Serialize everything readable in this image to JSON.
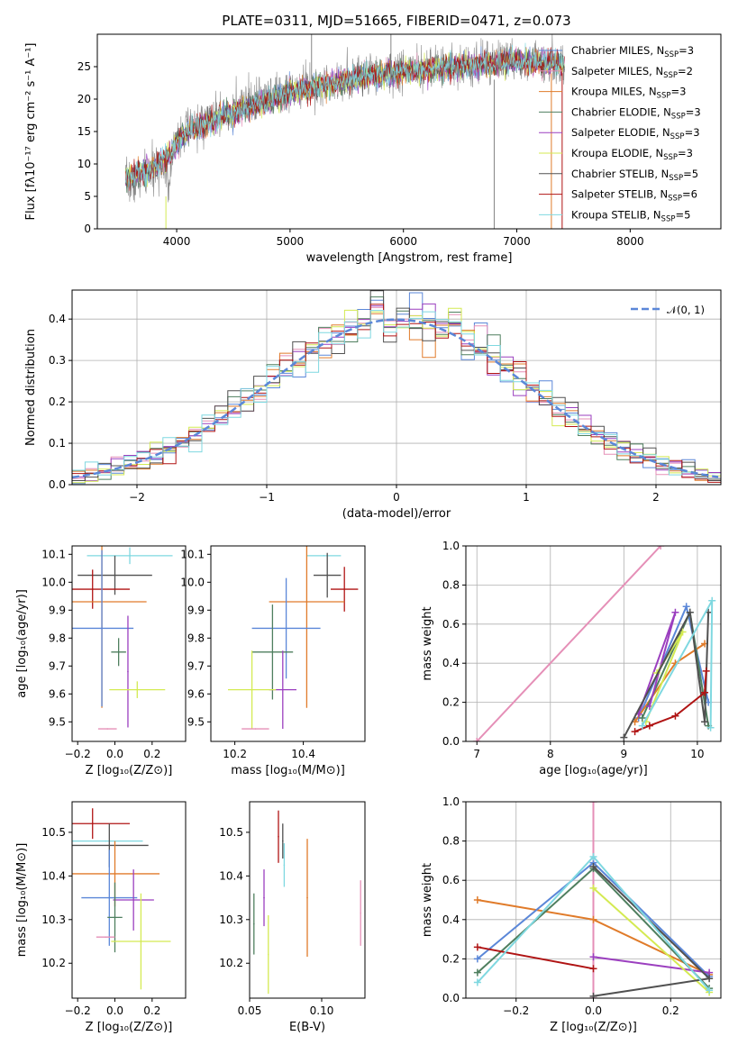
{
  "title": "PLATE=0311, MJD=51665, FIBERID=0471, z=0.073",
  "colors": {
    "chabrier_miles": "#5b87d8",
    "salpeter_miles": "#e58fb7",
    "kroupa_miles": "#e07b2a",
    "chabrier_elodie": "#4f7f5f",
    "salpeter_elodie": "#9b3fbf",
    "kroupa_elodie": "#d4ea52",
    "chabrier_stelib": "#505050",
    "salpeter_stelib": "#b01414",
    "kroupa_stelib": "#7fd8e0"
  },
  "chart_data": [
    {
      "id": "spectrum",
      "type": "line",
      "title": "PLATE=0311, MJD=51665, FIBERID=0471, z=0.073",
      "xlabel": "wavelength [Angstrom, rest frame]",
      "ylabel": "Flux [fλ10⁻¹⁷ erg cm⁻² s⁻¹ A⁻¹]",
      "xlim": [
        3300,
        8800
      ],
      "ylim": [
        0,
        30
      ],
      "xticks": [
        4000,
        5000,
        6000,
        7000,
        8000
      ],
      "yticks": [
        0,
        5,
        10,
        15,
        20,
        25
      ],
      "grid": false,
      "legend_position": "top-right",
      "legend": [
        {
          "key": "chabrier_miles",
          "label": "Chabrier MILES, N",
          "sub": "SSP",
          "tail": "=3"
        },
        {
          "key": "salpeter_miles",
          "label": "Salpeter MILES, N",
          "sub": "SSP",
          "tail": "=2"
        },
        {
          "key": "kroupa_miles",
          "label": "Kroupa MILES, N",
          "sub": "SSP",
          "tail": "=3"
        },
        {
          "key": "chabrier_elodie",
          "label": "Chabrier ELODIE, N",
          "sub": "SSP",
          "tail": "=3"
        },
        {
          "key": "salpeter_elodie",
          "label": "Salpeter ELODIE, N",
          "sub": "SSP",
          "tail": "=3"
        },
        {
          "key": "kroupa_elodie",
          "label": "Kroupa ELODIE, N",
          "sub": "SSP",
          "tail": "=3"
        },
        {
          "key": "chabrier_stelib",
          "label": "Chabrier STELIB, N",
          "sub": "SSP",
          "tail": "=5"
        },
        {
          "key": "salpeter_stelib",
          "label": "Salpeter STELIB, N",
          "sub": "SSP",
          "tail": "=6"
        },
        {
          "key": "kroupa_stelib",
          "label": "Kroupa STELIB, N",
          "sub": "SSP",
          "tail": "=5"
        }
      ],
      "continuum": [
        [
          3550,
          7.5
        ],
        [
          3650,
          7.0
        ],
        [
          3750,
          8.5
        ],
        [
          3850,
          9.5
        ],
        [
          3950,
          11.0
        ],
        [
          4050,
          15.0
        ],
        [
          4150,
          16.0
        ],
        [
          4250,
          16.5
        ],
        [
          4400,
          17.5
        ],
        [
          4500,
          18.5
        ],
        [
          4700,
          19.5
        ],
        [
          4900,
          20.5
        ],
        [
          5100,
          22.0
        ],
        [
          5300,
          22.5
        ],
        [
          5500,
          23.0
        ],
        [
          5700,
          24.0
        ],
        [
          5900,
          24.2
        ],
        [
          6100,
          24.5
        ],
        [
          6300,
          24.8
        ],
        [
          6500,
          25.0
        ],
        [
          6700,
          25.5
        ],
        [
          6900,
          26.0
        ],
        [
          7100,
          26.0
        ],
        [
          7300,
          25.5
        ],
        [
          7420,
          25.3
        ]
      ],
      "model_continuum": [
        [
          3550,
          8.0
        ],
        [
          3750,
          9.0
        ],
        [
          3950,
          11.5
        ],
        [
          4050,
          14.5
        ],
        [
          4300,
          16.5
        ],
        [
          4600,
          18.5
        ],
        [
          5000,
          21.0
        ],
        [
          5500,
          23.0
        ],
        [
          6000,
          24.2
        ],
        [
          6500,
          25.0
        ],
        [
          7000,
          25.8
        ],
        [
          7400,
          25.5
        ]
      ]
    },
    {
      "id": "residuals",
      "type": "histogram",
      "xlabel": "(data-model)/error",
      "ylabel": "Normed distribution",
      "xlim": [
        -2.5,
        2.5
      ],
      "ylim": [
        0,
        0.47
      ],
      "xticks": [
        -2,
        -1,
        0,
        1,
        2
      ],
      "yticks": [
        0.0,
        0.1,
        0.2,
        0.3,
        0.4
      ],
      "grid": true,
      "legend_position": "top-right",
      "legend_label": "𝒩(0, 1)",
      "gaussian_mean": 0,
      "gaussian_sigma": 1,
      "bin_width": 0.1
    },
    {
      "id": "age_vs_Z",
      "type": "errorbar",
      "xlabel": "Z [log₁₀(Z/Z⊙)]",
      "ylabel": "age  [log₁₀(age/yr)]",
      "xlim": [
        -0.23,
        0.38
      ],
      "ylim": [
        9.43,
        10.13
      ],
      "xticks": [
        -0.2,
        0.0,
        0.2
      ],
      "yticks": [
        9.5,
        9.6,
        9.7,
        9.8,
        9.9,
        10.0,
        10.1
      ],
      "grid": false,
      "points": [
        {
          "key": "kroupa_stelib",
          "x": 0.08,
          "y": 10.095,
          "xerr": 0.23,
          "yerr": 0.03
        },
        {
          "key": "chabrier_stelib",
          "x": 0.0,
          "y": 10.025,
          "xerr": 0.2,
          "yerr": 0.07
        },
        {
          "key": "salpeter_stelib",
          "x": -0.12,
          "y": 9.975,
          "xerr": 0.2,
          "yerr": 0.07
        },
        {
          "key": "kroupa_miles",
          "x": -0.07,
          "y": 9.93,
          "xerr": 0.24,
          "yerr": 0.38
        },
        {
          "key": "chabrier_miles",
          "x": -0.07,
          "y": 9.835,
          "xerr": 0.17,
          "yerr": 0.28
        },
        {
          "key": "chabrier_elodie",
          "x": 0.02,
          "y": 9.75,
          "xerr": 0.04,
          "yerr": 0.05
        },
        {
          "key": "salpeter_elodie",
          "x": 0.07,
          "y": 9.68,
          "xerr": 0.0,
          "yerr": 0.2
        },
        {
          "key": "kroupa_elodie",
          "x": 0.12,
          "y": 9.615,
          "xerr": 0.15,
          "yerr": 0.03
        },
        {
          "key": "salpeter_miles",
          "x": -0.04,
          "y": 9.475,
          "xerr": 0.05,
          "yerr": 0.0
        }
      ]
    },
    {
      "id": "age_vs_mass",
      "type": "errorbar",
      "xlabel": "mass [log₁₀(M/M⊙)]",
      "ylabel": "",
      "xlim": [
        10.13,
        10.58
      ],
      "ylim": [
        9.43,
        10.13
      ],
      "xticks": [
        10.2,
        10.4
      ],
      "yticks": [
        9.5,
        9.6,
        9.7,
        9.8,
        9.9,
        10.0,
        10.1
      ],
      "grid": false,
      "points": [
        {
          "key": "kroupa_stelib",
          "x": 10.46,
          "y": 10.095,
          "xerr": 0.05,
          "yerr": 0.0
        },
        {
          "key": "chabrier_stelib",
          "x": 10.47,
          "y": 10.025,
          "xerr": 0.04,
          "yerr": 0.08
        },
        {
          "key": "salpeter_stelib",
          "x": 10.52,
          "y": 9.975,
          "xerr": 0.04,
          "yerr": 0.08
        },
        {
          "key": "kroupa_miles",
          "x": 10.41,
          "y": 9.93,
          "xerr": 0.11,
          "yerr": 0.38
        },
        {
          "key": "chabrier_miles",
          "x": 10.35,
          "y": 9.835,
          "xerr": 0.1,
          "yerr": 0.18
        },
        {
          "key": "chabrier_elodie",
          "x": 10.31,
          "y": 9.75,
          "xerr": 0.06,
          "yerr": 0.17
        },
        {
          "key": "salpeter_elodie",
          "x": 10.34,
          "y": 9.615,
          "xerr": 0.04,
          "yerr": 0.14
        },
        {
          "key": "kroupa_elodie",
          "x": 10.25,
          "y": 9.615,
          "xerr": 0.07,
          "yerr": 0.14
        },
        {
          "key": "salpeter_miles",
          "x": 10.26,
          "y": 9.475,
          "xerr": 0.04,
          "yerr": 0.0
        }
      ]
    },
    {
      "id": "massweight_vs_age",
      "type": "line",
      "xlabel": "age  [log₁₀(age/yr)]",
      "ylabel": "mass weight",
      "xlim": [
        6.85,
        10.32
      ],
      "ylim": [
        0,
        1.0
      ],
      "xticks": [
        7,
        8,
        9,
        10
      ],
      "yticks": [
        0.0,
        0.2,
        0.4,
        0.6,
        0.8,
        1.0
      ],
      "grid": true,
      "series": [
        {
          "key": "salpeter_miles",
          "x": [
            7.0,
            9.5
          ],
          "y": [
            0.0,
            1.0
          ]
        },
        {
          "key": "chabrier_miles",
          "x": [
            9.2,
            9.85,
            10.15
          ],
          "y": [
            0.12,
            0.69,
            0.2
          ]
        },
        {
          "key": "kroupa_miles",
          "x": [
            9.15,
            9.7,
            10.1
          ],
          "y": [
            0.1,
            0.4,
            0.5
          ]
        },
        {
          "key": "chabrier_elodie",
          "x": [
            9.25,
            9.9,
            10.15
          ],
          "y": [
            0.12,
            0.66,
            0.08
          ]
        },
        {
          "key": "salpeter_elodie",
          "x": [
            9.2,
            9.7,
            9.35
          ],
          "y": [
            0.14,
            0.66,
            0.18
          ]
        },
        {
          "key": "kroupa_elodie",
          "x": [
            9.3,
            9.8,
            9.45
          ],
          "y": [
            0.1,
            0.56,
            0.35
          ]
        },
        {
          "key": "chabrier_stelib",
          "x": [
            9.0,
            9.9,
            10.1,
            10.15
          ],
          "y": [
            0.02,
            0.66,
            0.1,
            0.66
          ]
        },
        {
          "key": "salpeter_stelib",
          "x": [
            9.15,
            9.35,
            9.7,
            10.1,
            10.12
          ],
          "y": [
            0.05,
            0.08,
            0.13,
            0.25,
            0.36
          ]
        },
        {
          "key": "kroupa_stelib",
          "x": [
            9.25,
            10.2,
            10.18
          ],
          "y": [
            0.08,
            0.72,
            0.07
          ]
        }
      ]
    },
    {
      "id": "mass_vs_Z",
      "type": "errorbar",
      "xlabel": "Z [log₁₀(Z/Z⊙)]",
      "ylabel": "mass [log₁₀(M/M⊙)]",
      "xlim": [
        -0.23,
        0.38
      ],
      "ylim": [
        10.12,
        10.57
      ],
      "xticks": [
        -0.2,
        0.0,
        0.2
      ],
      "yticks": [
        10.2,
        10.3,
        10.4,
        10.5
      ],
      "grid": false,
      "points": [
        {
          "key": "salpeter_stelib",
          "x": -0.12,
          "y": 10.52,
          "xerr": 0.2,
          "yerr": 0.035
        },
        {
          "key": "kroupa_stelib",
          "x": -0.05,
          "y": 10.48,
          "xerr": 0.2,
          "yerr": 0.0
        },
        {
          "key": "chabrier_stelib",
          "x": -0.03,
          "y": 10.47,
          "xerr": 0.21,
          "yerr": 0.05
        },
        {
          "key": "kroupa_miles",
          "x": 0.0,
          "y": 10.405,
          "xerr": 0.24,
          "yerr": 0.075
        },
        {
          "key": "chabrier_miles",
          "x": -0.03,
          "y": 10.35,
          "xerr": 0.15,
          "yerr": 0.11
        },
        {
          "key": "salpeter_elodie",
          "x": 0.1,
          "y": 10.345,
          "xerr": 0.11,
          "yerr": 0.07
        },
        {
          "key": "chabrier_elodie",
          "x": 0.0,
          "y": 10.305,
          "xerr": 0.04,
          "yerr": 0.08
        },
        {
          "key": "salpeter_miles",
          "x": -0.05,
          "y": 10.26,
          "xerr": 0.05,
          "yerr": 0.0
        },
        {
          "key": "kroupa_elodie",
          "x": 0.14,
          "y": 10.25,
          "xerr": 0.16,
          "yerr": 0.11
        }
      ]
    },
    {
      "id": "mass_vs_ebv",
      "type": "errorbar",
      "xlabel": "E(B-V)",
      "ylabel": "",
      "xlim": [
        0.05,
        0.13
      ],
      "ylim": [
        10.12,
        10.57
      ],
      "xticks": [
        0.05,
        0.1
      ],
      "yticks": [
        10.2,
        10.3,
        10.4,
        10.5
      ],
      "grid": false,
      "points": [
        {
          "key": "chabrier_elodie",
          "x": 0.053,
          "y": 10.29,
          "xerr": 0.0,
          "yerr": 0.07
        },
        {
          "key": "salpeter_elodie",
          "x": 0.06,
          "y": 10.35,
          "xerr": 0.0,
          "yerr": 0.065
        },
        {
          "key": "kroupa_elodie",
          "x": 0.063,
          "y": 10.22,
          "xerr": 0.0,
          "yerr": 0.09
        },
        {
          "key": "salpeter_stelib",
          "x": 0.07,
          "y": 10.49,
          "xerr": 0.0,
          "yerr": 0.06
        },
        {
          "key": "chabrier_stelib",
          "x": 0.073,
          "y": 10.48,
          "xerr": 0.0,
          "yerr": 0.04
        },
        {
          "key": "kroupa_stelib",
          "x": 0.074,
          "y": 10.425,
          "xerr": 0.0,
          "yerr": 0.05
        },
        {
          "key": "kroupa_miles",
          "x": 0.09,
          "y": 10.35,
          "xerr": 0.0,
          "yerr": 0.135
        },
        {
          "key": "salpeter_miles",
          "x": 0.127,
          "y": 10.315,
          "xerr": 0.0,
          "yerr": 0.075
        }
      ]
    },
    {
      "id": "massweight_vs_Z",
      "type": "line",
      "xlabel": "Z [log₁₀(Z/Z⊙)]",
      "ylabel": "mass weight",
      "xlim": [
        -0.33,
        0.33
      ],
      "ylim": [
        0,
        1.0
      ],
      "xticks": [
        -0.2,
        0.0,
        0.2
      ],
      "yticks": [
        0.0,
        0.2,
        0.4,
        0.6,
        0.8,
        1.0
      ],
      "grid": true,
      "series": [
        {
          "key": "salpeter_miles",
          "x": [
            0.0,
            0.0
          ],
          "y": [
            0.0,
            1.0
          ]
        },
        {
          "key": "kroupa_miles",
          "x": [
            -0.3,
            0.0,
            0.3
          ],
          "y": [
            0.5,
            0.4,
            0.12
          ]
        },
        {
          "key": "chabrier_miles",
          "x": [
            -0.3,
            0.0,
            0.3
          ],
          "y": [
            0.2,
            0.69,
            0.11
          ]
        },
        {
          "key": "chabrier_elodie",
          "x": [
            -0.3,
            0.0,
            0.3
          ],
          "y": [
            0.13,
            0.66,
            0.05
          ]
        },
        {
          "key": "salpeter_elodie",
          "x": [
            0.0,
            0.3
          ],
          "y": [
            0.21,
            0.13
          ]
        },
        {
          "key": "kroupa_elodie",
          "x": [
            0.0,
            0.3
          ],
          "y": [
            0.56,
            0.03
          ]
        },
        {
          "key": "chabrier_stelib",
          "x": [
            0.0,
            0.3,
            0.0
          ],
          "y": [
            0.01,
            0.1,
            0.67
          ]
        },
        {
          "key": "salpeter_stelib",
          "x": [
            -0.3,
            0.0
          ],
          "y": [
            0.26,
            0.15
          ]
        },
        {
          "key": "kroupa_stelib",
          "x": [
            -0.3,
            0.0,
            0.3
          ],
          "y": [
            0.08,
            0.72,
            0.04
          ]
        }
      ]
    }
  ]
}
